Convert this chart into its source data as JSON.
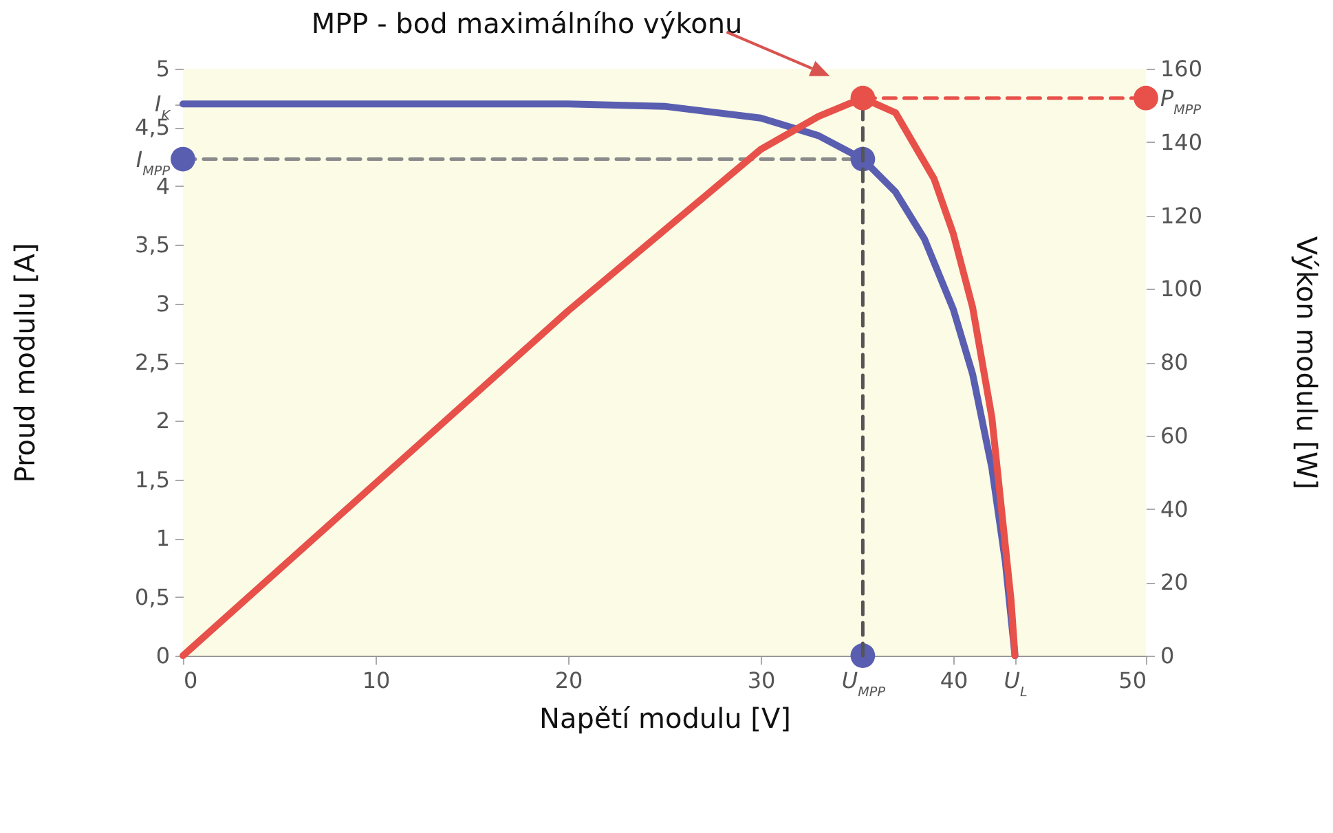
{
  "chart_data": {
    "type": "line",
    "title": "MPP - bod maximálního výkonu",
    "xlabel": "Napětí modulu [V]",
    "ylabel": "Proud modulu [A]",
    "y2label": "Výkon modulu [W]",
    "xlim": [
      0,
      50
    ],
    "xticks": [
      0,
      10,
      20,
      30,
      {
        "value": 35.3,
        "label": "U$_{MPP}$"
      },
      40,
      {
        "value": 43.2,
        "label": "U$_{L}$"
      },
      50
    ],
    "ylim": [
      0,
      5
    ],
    "yticks": [
      0,
      {
        "value": 0.5,
        "label": "0,5"
      },
      1,
      {
        "value": 1.5,
        "label": "1,5"
      },
      2,
      {
        "value": 2.5,
        "label": "2,5"
      },
      3,
      {
        "value": 3.5,
        "label": "3,5"
      },
      4,
      {
        "value": 4.23,
        "label": "I$_{MPP}$"
      },
      {
        "value": 4.5,
        "label": "4,5"
      },
      {
        "value": 4.7,
        "label": "I$_{K}$"
      },
      5
    ],
    "y2lim": [
      0,
      160
    ],
    "y2ticks": [
      0,
      20,
      40,
      60,
      80,
      100,
      120,
      140,
      {
        "value": 152,
        "label": "P$_{MPP}$"
      },
      160
    ],
    "series": [
      {
        "type": "line",
        "color": "#5a5eb0",
        "x": [
          0,
          10,
          20,
          25,
          30,
          33,
          35.3,
          37,
          38.5,
          40,
          41,
          42,
          42.7,
          43.2
        ],
        "values": [
          4.7,
          4.7,
          4.7,
          4.68,
          4.58,
          4.43,
          4.23,
          3.95,
          3.55,
          2.95,
          2.4,
          1.6,
          0.8,
          0
        ]
      },
      {
        "type": "line",
        "color": "#8a8a8a",
        "line_style": "dashed",
        "x": [
          0,
          35.3
        ],
        "values": [
          4.23,
          4.23
        ]
      },
      {
        "type": "scatter",
        "marker": "circle",
        "color": "#5a5eb0",
        "x": [
          0,
          35.3,
          35.3
        ],
        "values": [
          4.23,
          4.23,
          0
        ]
      },
      {
        "type": "line",
        "axis": "y2",
        "color": "#e8504a",
        "x": [
          0,
          10,
          20,
          30,
          33,
          35.3,
          37,
          39,
          40,
          41,
          42,
          43,
          43.2
        ],
        "values": [
          0,
          47,
          94,
          138,
          147,
          152,
          148,
          130,
          115,
          95,
          65,
          15,
          0
        ]
      },
      {
        "type": "line",
        "axis": "y2",
        "color": "#555555",
        "line_style": "dashed",
        "x": [
          35.3,
          35.3
        ],
        "values": [
          0,
          152
        ]
      },
      {
        "type": "line",
        "axis": "y2",
        "color": "#e8504a",
        "line_style": "dashed",
        "x": [
          35.3,
          50
        ],
        "values": [
          152,
          152
        ]
      },
      {
        "type": "scatter",
        "axis": "y2",
        "marker": "circle",
        "color": "#e8504a",
        "x": [
          35.3,
          50
        ],
        "values": [
          152,
          152
        ]
      }
    ]
  }
}
